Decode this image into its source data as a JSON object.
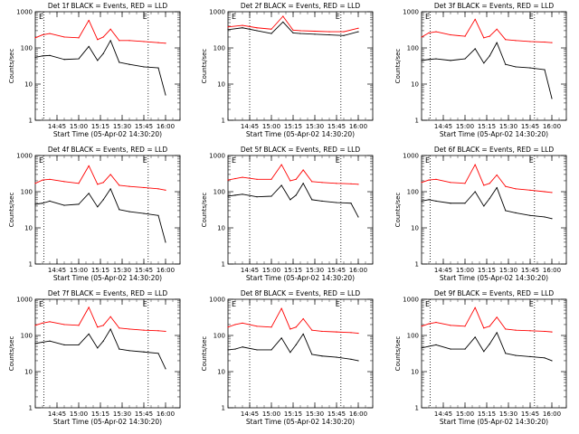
{
  "figure": {
    "xlabel": "Start Time (05-Apr-02 14:30:20)",
    "ylabel": "Counts/sec",
    "x_ticks": [
      "14:45",
      "15:00",
      "15:15",
      "15:30",
      "15:45",
      "16:00"
    ],
    "y_ticks": [
      "1",
      "10",
      "100",
      "1000"
    ],
    "marker_label": "E"
  },
  "colors": {
    "events": "#000000",
    "lld": "#ff0000",
    "axis": "#000000"
  },
  "chart_data": [
    {
      "type": "line",
      "title": "Det 1f BLACK = Events, RED = LLD",
      "x_range_minutes": [
        0,
        100
      ],
      "y_scale": "log",
      "ylim": [
        1,
        1000
      ],
      "vlines": [
        "14:36",
        "15:48"
      ],
      "series": [
        {
          "name": "Events",
          "x": [
            0,
            5,
            10,
            20,
            30,
            37,
            43,
            47,
            52,
            58,
            65,
            75,
            85,
            90
          ],
          "y": [
            55,
            60,
            62,
            48,
            50,
            110,
            45,
            70,
            160,
            40,
            35,
            30,
            28,
            5
          ]
        },
        {
          "name": "LLD",
          "x": [
            0,
            5,
            10,
            20,
            30,
            37,
            43,
            47,
            52,
            58,
            65,
            75,
            85,
            90
          ],
          "y": [
            190,
            230,
            250,
            200,
            190,
            580,
            170,
            200,
            330,
            160,
            160,
            150,
            140,
            135
          ]
        }
      ]
    },
    {
      "type": "line",
      "title": "Det 2f BLACK = Events, RED = LLD",
      "x_range_minutes": [
        0,
        100
      ],
      "y_scale": "log",
      "ylim": [
        1,
        1000
      ],
      "vlines": [
        "14:45",
        "15:48"
      ],
      "series": [
        {
          "name": "Events",
          "x": [
            0,
            10,
            20,
            30,
            38,
            45,
            50,
            60,
            70,
            80,
            90
          ],
          "y": [
            320,
            360,
            300,
            250,
            520,
            260,
            250,
            240,
            230,
            220,
            280
          ]
        },
        {
          "name": "LLD",
          "x": [
            0,
            10,
            20,
            30,
            38,
            45,
            50,
            60,
            70,
            80,
            90
          ],
          "y": [
            380,
            420,
            360,
            330,
            750,
            310,
            300,
            290,
            280,
            280,
            350
          ]
        }
      ]
    },
    {
      "type": "line",
      "title": "Det 3f BLACK = Events, RED = LLD",
      "x_range_minutes": [
        0,
        100
      ],
      "y_scale": "log",
      "ylim": [
        1,
        1000
      ],
      "vlines": [
        "14:36",
        "15:48"
      ],
      "series": [
        {
          "name": "Events",
          "x": [
            0,
            5,
            10,
            20,
            30,
            37,
            43,
            47,
            52,
            58,
            65,
            75,
            85,
            90
          ],
          "y": [
            45,
            48,
            50,
            45,
            50,
            95,
            38,
            60,
            140,
            35,
            30,
            28,
            25,
            4
          ]
        },
        {
          "name": "LLD",
          "x": [
            0,
            5,
            10,
            20,
            30,
            37,
            43,
            47,
            52,
            58,
            65,
            75,
            85,
            90
          ],
          "y": [
            200,
            260,
            280,
            230,
            210,
            620,
            190,
            210,
            330,
            170,
            160,
            150,
            145,
            140
          ]
        }
      ]
    },
    {
      "type": "line",
      "title": "Det 4f BLACK = Events, RED = LLD",
      "x_range_minutes": [
        0,
        100
      ],
      "y_scale": "log",
      "ylim": [
        1,
        1000
      ],
      "vlines": [
        "14:36",
        "15:48"
      ],
      "series": [
        {
          "name": "Events",
          "x": [
            0,
            5,
            10,
            20,
            30,
            37,
            43,
            47,
            52,
            58,
            65,
            75,
            85,
            90
          ],
          "y": [
            45,
            48,
            55,
            42,
            45,
            90,
            38,
            60,
            120,
            32,
            28,
            25,
            22,
            4
          ]
        },
        {
          "name": "LLD",
          "x": [
            0,
            5,
            10,
            20,
            30,
            37,
            43,
            47,
            52,
            58,
            65,
            75,
            85,
            90
          ],
          "y": [
            170,
            210,
            220,
            190,
            170,
            520,
            160,
            180,
            300,
            150,
            140,
            130,
            120,
            110
          ]
        }
      ]
    },
    {
      "type": "line",
      "title": "Det 5f BLACK = Events, RED = LLD",
      "x_range_minutes": [
        0,
        100
      ],
      "y_scale": "log",
      "ylim": [
        1,
        1000
      ],
      "vlines": [
        "14:45",
        "15:48"
      ],
      "series": [
        {
          "name": "Events",
          "x": [
            0,
            5,
            10,
            20,
            30,
            37,
            43,
            47,
            52,
            58,
            65,
            75,
            85,
            90
          ],
          "y": [
            75,
            80,
            85,
            72,
            75,
            150,
            60,
            80,
            170,
            60,
            55,
            50,
            48,
            20
          ]
        },
        {
          "name": "LLD",
          "x": [
            0,
            5,
            10,
            20,
            30,
            37,
            43,
            47,
            52,
            58,
            65,
            75,
            85,
            90
          ],
          "y": [
            210,
            230,
            250,
            220,
            220,
            560,
            200,
            220,
            400,
            190,
            180,
            170,
            165,
            160
          ]
        }
      ]
    },
    {
      "type": "line",
      "title": "Det 6f BLACK = Events, RED = LLD",
      "x_range_minutes": [
        0,
        100
      ],
      "y_scale": "log",
      "ylim": [
        1,
        1000
      ],
      "vlines": [
        "14:36",
        "15:48"
      ],
      "series": [
        {
          "name": "Events",
          "x": [
            0,
            5,
            10,
            20,
            30,
            37,
            43,
            47,
            52,
            58,
            65,
            75,
            85,
            90
          ],
          "y": [
            55,
            60,
            55,
            48,
            48,
            100,
            40,
            65,
            130,
            30,
            26,
            22,
            20,
            18
          ]
        },
        {
          "name": "LLD",
          "x": [
            0,
            5,
            10,
            20,
            30,
            37,
            43,
            47,
            52,
            58,
            65,
            75,
            85,
            90
          ],
          "y": [
            180,
            210,
            220,
            180,
            170,
            560,
            150,
            170,
            290,
            140,
            120,
            110,
            100,
            95
          ]
        }
      ]
    },
    {
      "type": "line",
      "title": "Det 7f BLACK = Events, RED = LLD",
      "x_range_minutes": [
        0,
        100
      ],
      "y_scale": "log",
      "ylim": [
        1,
        1000
      ],
      "vlines": [
        "14:36",
        "15:48"
      ],
      "series": [
        {
          "name": "Events",
          "x": [
            0,
            5,
            10,
            20,
            30,
            37,
            43,
            47,
            52,
            58,
            65,
            75,
            85,
            90
          ],
          "y": [
            60,
            65,
            70,
            55,
            55,
            110,
            45,
            70,
            150,
            42,
            38,
            35,
            32,
            12
          ]
        },
        {
          "name": "LLD",
          "x": [
            0,
            5,
            10,
            20,
            30,
            37,
            43,
            47,
            52,
            58,
            65,
            75,
            85,
            90
          ],
          "y": [
            190,
            220,
            240,
            200,
            190,
            600,
            170,
            190,
            330,
            160,
            150,
            140,
            135,
            130
          ]
        }
      ]
    },
    {
      "type": "line",
      "title": "Det 8f BLACK = Events, RED = LLD",
      "x_range_minutes": [
        0,
        100
      ],
      "y_scale": "log",
      "ylim": [
        1,
        1000
      ],
      "vlines": [
        "14:45",
        "15:48"
      ],
      "series": [
        {
          "name": "Events",
          "x": [
            0,
            5,
            10,
            20,
            30,
            37,
            43,
            47,
            52,
            58,
            65,
            75,
            85,
            90
          ],
          "y": [
            40,
            42,
            48,
            40,
            40,
            85,
            34,
            55,
            110,
            30,
            27,
            25,
            22,
            20
          ]
        },
        {
          "name": "LLD",
          "x": [
            0,
            5,
            10,
            20,
            30,
            37,
            43,
            47,
            52,
            58,
            65,
            75,
            85,
            90
          ],
          "y": [
            170,
            200,
            220,
            180,
            170,
            560,
            150,
            170,
            290,
            140,
            130,
            125,
            120,
            115
          ]
        }
      ]
    },
    {
      "type": "line",
      "title": "Det 9f BLACK = Events, RED = LLD",
      "x_range_minutes": [
        0,
        100
      ],
      "y_scale": "log",
      "ylim": [
        1,
        1000
      ],
      "vlines": [
        "14:36",
        "15:48"
      ],
      "series": [
        {
          "name": "Events",
          "x": [
            0,
            5,
            10,
            20,
            30,
            37,
            43,
            47,
            52,
            58,
            65,
            75,
            85,
            90
          ],
          "y": [
            45,
            50,
            55,
            42,
            42,
            90,
            36,
            58,
            120,
            32,
            28,
            26,
            24,
            20
          ]
        },
        {
          "name": "LLD",
          "x": [
            0,
            5,
            10,
            20,
            30,
            37,
            43,
            47,
            52,
            58,
            65,
            75,
            85,
            90
          ],
          "y": [
            180,
            210,
            230,
            190,
            180,
            590,
            160,
            180,
            320,
            150,
            140,
            135,
            130,
            125
          ]
        }
      ]
    }
  ]
}
